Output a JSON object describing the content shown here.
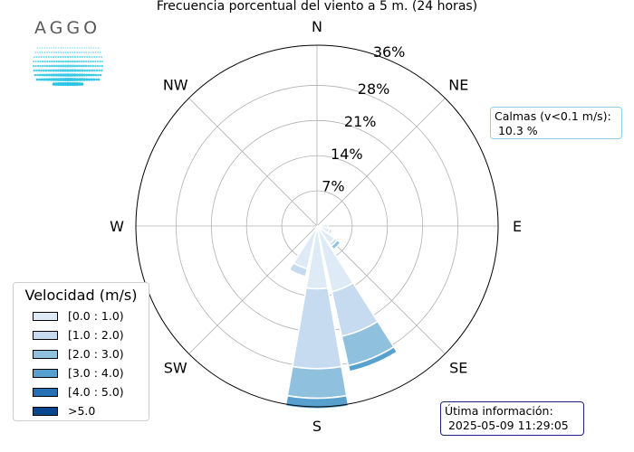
{
  "title": "Frecuencia porcentual del viento a 5 m. (24 horas)",
  "logo": {
    "text": "AGGO",
    "colors": [
      "#5a5a5a",
      "#29c4e3"
    ]
  },
  "calm": {
    "label": "Calmas (v<0.1 m/s):",
    "value": " 10.3 %"
  },
  "last_update": {
    "label": "Útima información:",
    "value": " 2025-05-09 11:29:05"
  },
  "legend": {
    "title": "Velocidad (m/s)",
    "items": [
      {
        "label": "[0.0 : 1.0)",
        "color": "#deebf7"
      },
      {
        "label": "[1.0 : 2.0)",
        "color": "#c6dbef"
      },
      {
        "label": "[2.0 : 3.0)",
        "color": "#8fc0de"
      },
      {
        "label": "[3.0 : 4.0)",
        "color": "#58a0ce"
      },
      {
        "label": "[4.0 : 5.0)",
        "color": "#2671b5"
      },
      {
        "label": ">5.0",
        "color": "#08478f"
      }
    ]
  },
  "chart_data": {
    "type": "windrose",
    "title": "Frecuencia porcentual del viento a 5 m. (24 horas)",
    "directions": [
      "N",
      "NE",
      "E",
      "SE",
      "S",
      "SW",
      "W",
      "NW"
    ],
    "radial_ticks": [
      "7%",
      "14%",
      "21%",
      "28%",
      "36%"
    ],
    "radial_tick_values": [
      7,
      14,
      21,
      28,
      36
    ],
    "rmax": 36,
    "sector_count": 16,
    "bins": [
      "[0.0 : 1.0)",
      "[1.0 : 2.0)",
      "[2.0 : 3.0)",
      "[3.0 : 4.0)",
      "[4.0 : 5.0)",
      ">5.0"
    ],
    "colors": [
      "#deebf7",
      "#c6dbef",
      "#8fc0de",
      "#58a0ce",
      "#2671b5",
      "#08478f"
    ],
    "sectors": [
      {
        "direction": "N",
        "values": [
          0,
          0,
          0,
          0,
          0,
          0
        ]
      },
      {
        "direction": "NNE",
        "values": [
          0,
          0,
          0,
          0,
          0,
          0
        ]
      },
      {
        "direction": "NE",
        "values": [
          0,
          0,
          0,
          0,
          0,
          0
        ]
      },
      {
        "direction": "ENE",
        "values": [
          0,
          0,
          0,
          0,
          0,
          0
        ]
      },
      {
        "direction": "E",
        "values": [
          2.2,
          0,
          0,
          0,
          0,
          0
        ]
      },
      {
        "direction": "ESE",
        "values": [
          2.6,
          0.5,
          0,
          0,
          0,
          0
        ]
      },
      {
        "direction": "SE",
        "values": [
          4.3,
          0.6,
          0.8,
          0,
          0,
          0
        ]
      },
      {
        "direction": "SSE",
        "values": [
          13.4,
          9.1,
          6.0,
          1.2,
          0,
          0
        ]
      },
      {
        "direction": "S",
        "values": [
          12.5,
          15.9,
          5.9,
          2.1,
          0,
          0
        ]
      },
      {
        "direction": "SSW",
        "values": [
          8.7,
          1.6,
          0,
          0,
          0,
          0
        ]
      },
      {
        "direction": "SW",
        "values": [
          0,
          0,
          0,
          0,
          0,
          0
        ]
      },
      {
        "direction": "WSW",
        "values": [
          0,
          0,
          0,
          0,
          0,
          0
        ]
      },
      {
        "direction": "W",
        "values": [
          0,
          0,
          0,
          0,
          0,
          0
        ]
      },
      {
        "direction": "WNW",
        "values": [
          0,
          0,
          0,
          0,
          0,
          0
        ]
      },
      {
        "direction": "NW",
        "values": [
          0,
          0,
          0,
          0,
          0,
          0
        ]
      },
      {
        "direction": "NNW",
        "values": [
          0,
          0,
          0,
          0,
          0,
          0
        ]
      }
    ]
  }
}
